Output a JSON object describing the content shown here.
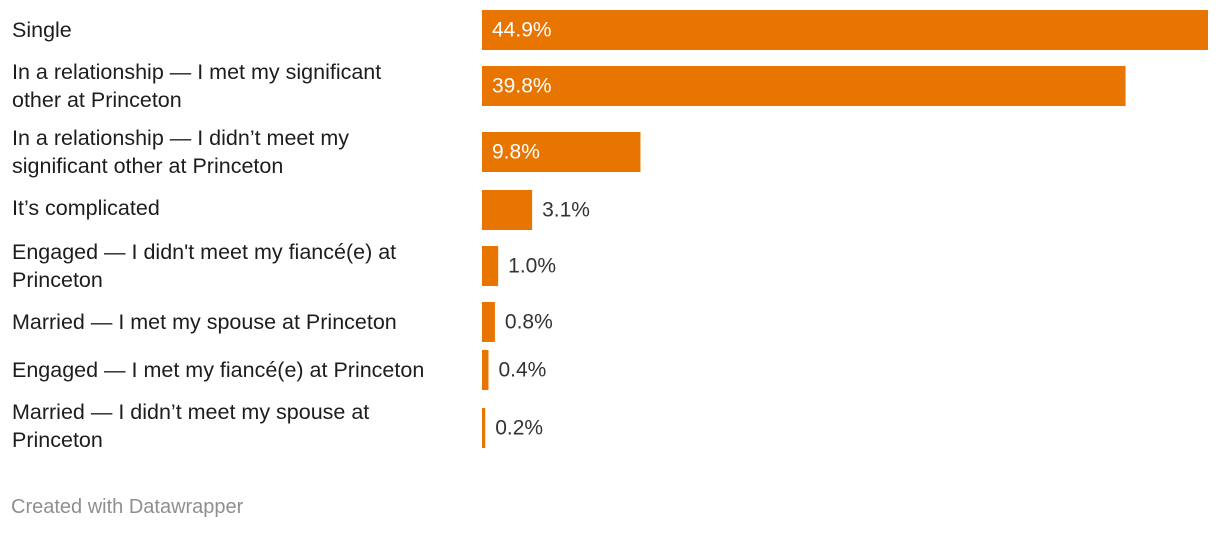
{
  "chart_data": {
    "type": "bar",
    "orientation": "horizontal",
    "categories": [
      "Single",
      "In a relationship — I met my significant other at Princeton",
      "In a relationship — I didn’t meet my significant other at Princeton",
      "It’s complicated",
      "Engaged — I didn't meet my fiancé(e) at Princeton",
      "Married — I met my spouse at Princeton",
      "Engaged — I met my fiancé(e) at Princeton",
      "Married — I didn’t meet my spouse at Princeton"
    ],
    "category_lines": [
      [
        "Single"
      ],
      [
        "In a relationship — I met my significant",
        "other at Princeton"
      ],
      [
        "In a relationship — I didn’t meet my",
        "significant other at Princeton"
      ],
      [
        "It’s complicated"
      ],
      [
        "Engaged — I didn't meet my fiancé(e) at",
        "Princeton"
      ],
      [
        "Married — I met my spouse at Princeton"
      ],
      [
        "Engaged — I met my fiancé(e) at Princeton"
      ],
      [
        "Married — I didn’t meet my spouse at",
        "Princeton"
      ]
    ],
    "values": [
      44.9,
      39.8,
      9.8,
      3.1,
      1.0,
      0.8,
      0.4,
      0.2
    ],
    "value_labels": [
      "44.9%",
      "39.8%",
      "9.8%",
      "3.1%",
      "1.0%",
      "0.8%",
      "0.4%",
      "0.2%"
    ],
    "unit": "%",
    "xlim": [
      0,
      44.9
    ],
    "grid": false,
    "legend": "none",
    "colors": {
      "bar": "#e87500",
      "label_inside": "#ffffff",
      "label_outside": "#333333",
      "text": "#1d1d1d",
      "credit": "#8f8f8f"
    }
  },
  "footer": {
    "credit": "Created with Datawrapper"
  }
}
